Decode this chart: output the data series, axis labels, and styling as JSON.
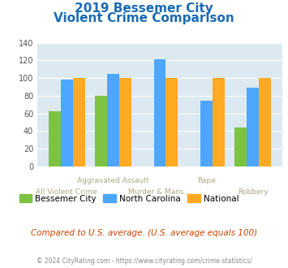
{
  "title_line1": "2019 Bessemer City",
  "title_line2": "Violent Crime Comparison",
  "categories": [
    "All Violent Crime",
    "Aggravated Assault",
    "Murder & Mans...",
    "Rape",
    "Robbery"
  ],
  "series": {
    "Bessemer City": [
      62,
      80,
      0,
      0,
      44
    ],
    "North Carolina": [
      98,
      105,
      121,
      74,
      89
    ],
    "National": [
      100,
      100,
      100,
      100,
      100
    ]
  },
  "colors": {
    "Bessemer City": "#7dc243",
    "North Carolina": "#4da6ff",
    "National": "#ffaa22"
  },
  "ylim": [
    0,
    140
  ],
  "yticks": [
    0,
    20,
    40,
    60,
    80,
    100,
    120,
    140
  ],
  "bg_color": "#dce9f0",
  "title_color": "#1a6bb5",
  "footer_note": "Compared to U.S. average. (U.S. average equals 100)",
  "copyright": "© 2024 CityRating.com - https://www.cityrating.com/crime-statistics/",
  "top_row_labels": [
    "",
    "Aggravated Assault",
    "",
    "Rape",
    ""
  ],
  "bottom_row_labels": [
    "All Violent Crime",
    "",
    "Murder & Mans...",
    "",
    "Robbery"
  ],
  "label_color": "#aaa880"
}
